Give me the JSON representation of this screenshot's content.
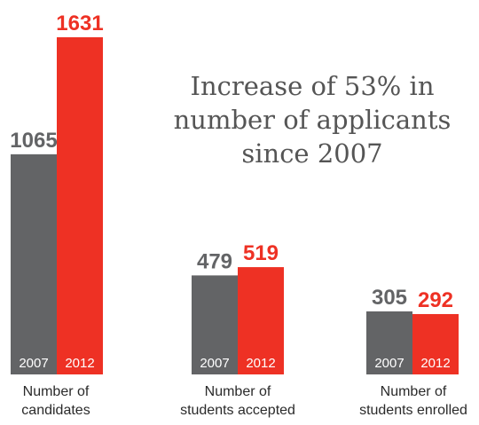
{
  "chart_data": {
    "type": "bar",
    "categories": [
      [
        "Number of",
        "candidates"
      ],
      [
        "Number of",
        "students accepted"
      ],
      [
        "Number of",
        "students enrolled"
      ]
    ],
    "series": [
      {
        "name": "2007",
        "color": "#636466",
        "values": [
          1065,
          479,
          305
        ]
      },
      {
        "name": "2012",
        "color": "#ee3124",
        "values": [
          1631,
          519,
          292
        ]
      }
    ],
    "ylim": [
      0,
      1631
    ],
    "grid": false,
    "legend": "none",
    "annotation": [
      "Increase of 53% in",
      "number of applicants",
      "since 2007"
    ]
  }
}
